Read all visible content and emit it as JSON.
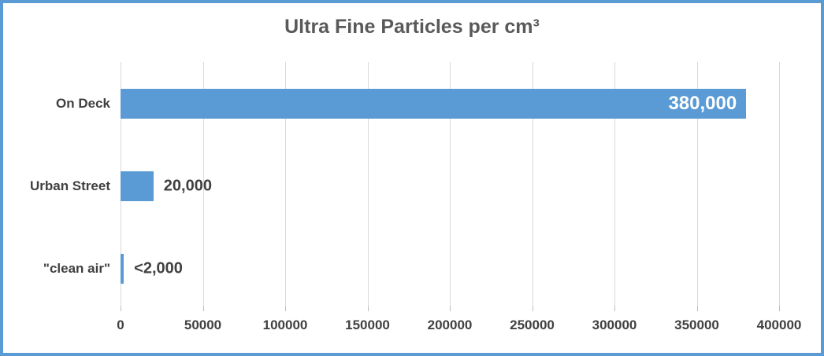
{
  "chart_data": {
    "type": "bar",
    "orientation": "horizontal",
    "title": "Ultra Fine Particles per cm³",
    "categories": [
      "On Deck",
      "Urban Street",
      "\"clean air\""
    ],
    "values": [
      380000,
      20000,
      2000
    ],
    "data_labels": [
      "380,000",
      "20,000",
      "<2,000"
    ],
    "data_label_inside": [
      true,
      false,
      false
    ],
    "xlabel": "",
    "ylabel": "",
    "xlim": [
      0,
      400000
    ],
    "x_ticks": [
      0,
      50000,
      100000,
      150000,
      200000,
      250000,
      300000,
      350000,
      400000
    ],
    "x_tick_labels": [
      "0",
      "50000",
      "100000",
      "150000",
      "200000",
      "250000",
      "300000",
      "350000",
      "400000"
    ],
    "grid": true,
    "gridlines": "vertical",
    "legend": false
  },
  "colors": {
    "bar": "#5B9BD5",
    "frame_border": "#5B9BD5",
    "title_text": "#595959",
    "axis_text": "#404040",
    "category_text": "#404040",
    "data_label_outside": "#404040",
    "data_label_inside": "#FFFFFF",
    "gridline": "#D9D9D9",
    "tick": "#BFBFBF",
    "background": "#FFFFFF"
  }
}
